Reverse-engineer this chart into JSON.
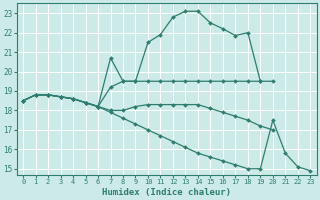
{
  "xlabel": "Humidex (Indice chaleur)",
  "bg_color": "#cceae7",
  "grid_color": "#b0d8d4",
  "line_color": "#2e7d6e",
  "marker_color": "#2e7d6e",
  "xlim": [
    -0.5,
    23.5
  ],
  "ylim": [
    14.7,
    23.5
  ],
  "yticks": [
    15,
    16,
    17,
    18,
    19,
    20,
    21,
    22,
    23
  ],
  "xticks": [
    0,
    1,
    2,
    3,
    4,
    5,
    6,
    7,
    8,
    9,
    10,
    11,
    12,
    13,
    14,
    15,
    16,
    17,
    18,
    19,
    20,
    21,
    22,
    23
  ],
  "series": [
    [
      18.5,
      18.8,
      18.8,
      18.7,
      18.6,
      18.4,
      18.2,
      20.7,
      19.5,
      19.5,
      21.5,
      21.9,
      22.8,
      23.1,
      23.1,
      22.5,
      22.2,
      21.85,
      22.0,
      19.5,
      null,
      null,
      null,
      null
    ],
    [
      18.5,
      18.8,
      18.8,
      18.7,
      18.6,
      18.4,
      18.2,
      19.2,
      19.5,
      19.5,
      19.5,
      19.5,
      19.5,
      19.5,
      19.5,
      19.5,
      19.5,
      19.5,
      19.5,
      19.5,
      19.5,
      null,
      null,
      null
    ],
    [
      18.5,
      18.8,
      18.8,
      18.7,
      18.6,
      18.4,
      18.2,
      18.0,
      18.0,
      18.2,
      18.3,
      18.3,
      18.3,
      18.3,
      18.3,
      18.1,
      17.9,
      17.7,
      17.5,
      17.2,
      17.0,
      null,
      null,
      null
    ],
    [
      18.5,
      18.8,
      18.8,
      18.7,
      18.6,
      18.4,
      18.2,
      17.9,
      17.6,
      17.3,
      17.0,
      16.7,
      16.4,
      16.1,
      15.8,
      15.6,
      15.4,
      15.2,
      15.0,
      15.0,
      17.5,
      15.8,
      15.1,
      14.9
    ]
  ]
}
